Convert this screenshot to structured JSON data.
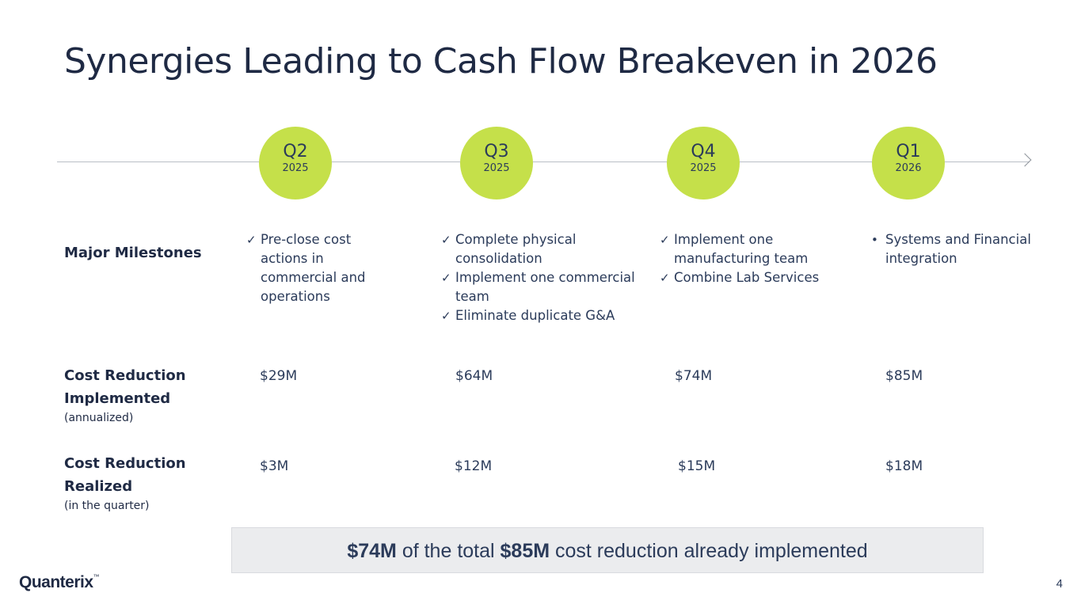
{
  "slide": {
    "title": "Synergies Leading to Cash Flow Breakeven in 2026",
    "page_number": "4"
  },
  "timeline": [
    {
      "quarter": "Q2",
      "year": "2025"
    },
    {
      "quarter": "Q3",
      "year": "2025"
    },
    {
      "quarter": "Q4",
      "year": "2025"
    },
    {
      "quarter": "Q1",
      "year": "2026"
    }
  ],
  "rows": {
    "milestones": {
      "label": "Major Milestones"
    },
    "implemented": {
      "label_line1": "Cost Reduction",
      "label_line2": "Implemented",
      "sub": "(annualized)"
    },
    "realized": {
      "label_line1": "Cost Reduction",
      "label_line2": "Realized",
      "sub": "(in the quarter)"
    }
  },
  "milestones": [
    {
      "bullet": "✓",
      "items": [
        "Pre-close cost actions in commercial and operations"
      ]
    },
    {
      "bullet": "✓",
      "items": [
        "Complete physical consolidation",
        "Implement one commercial team",
        "Eliminate duplicate G&A"
      ]
    },
    {
      "bullet": "✓",
      "items": [
        "Implement one manufacturing team",
        "Combine Lab Services"
      ]
    },
    {
      "bullet": "•",
      "items": [
        "Systems and Financial integration"
      ]
    }
  ],
  "cost_implemented": [
    "$29M",
    "$64M",
    "$74M",
    "$85M"
  ],
  "cost_realized": [
    "$3M",
    "$12M",
    "$15M",
    "$18M"
  ],
  "summary": {
    "highlight1": "$74M",
    "text1": " of the total ",
    "highlight2": "$85M",
    "text2": " cost reduction already implemented"
  },
  "brand": {
    "logo_text": "Quanterix",
    "logo_mark": "™",
    "accent_color": "#c5e04a",
    "text_color": "#1f2a44"
  }
}
